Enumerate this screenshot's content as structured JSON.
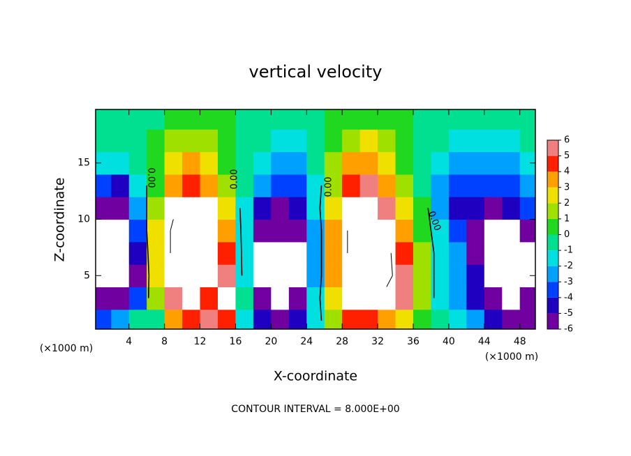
{
  "chart_data": {
    "type": "contourf",
    "title": "vertical velocity",
    "xlabel": "X-coordinate",
    "ylabel": "Z-coordinate",
    "x_unit_label": "(×1000 m)",
    "y_unit_label": "(×1000 m)",
    "contour_interval_label": "CONTOUR INTERVAL = 8.000E+00",
    "contour_labels": [
      "0.00",
      "0.00",
      "0.00",
      "0.00"
    ],
    "xlim": [
      0.25,
      49.75
    ],
    "ylim": [
      0.25,
      19.75
    ],
    "xticks": [
      4,
      8,
      12,
      16,
      20,
      24,
      28,
      32,
      36,
      40,
      44,
      48
    ],
    "yticks": [
      5,
      10,
      15
    ],
    "x": [
      1,
      3,
      5,
      7,
      9,
      11,
      13,
      15,
      17,
      19,
      21,
      23,
      25,
      27,
      29,
      31,
      33,
      35,
      37,
      39,
      41,
      43,
      45,
      47,
      49
    ],
    "y": [
      1,
      3,
      5,
      7,
      9,
      11,
      13,
      15,
      17,
      19
    ],
    "z": [
      [
        -3,
        -2,
        0,
        0,
        4,
        5,
        6,
        5,
        -1,
        -4,
        -5,
        -4,
        -1,
        2,
        5,
        5,
        4,
        3,
        1,
        0,
        -1,
        -2,
        -4,
        -5,
        -5
      ],
      [
        -5,
        -6,
        -3,
        2,
        6,
        7,
        5,
        7,
        0,
        -6,
        -7,
        -5,
        -1,
        3,
        7,
        8,
        7,
        6,
        2,
        -1,
        -2,
        -4,
        -6,
        -7,
        -6
      ],
      [
        -7,
        -7,
        -5,
        3,
        8,
        9,
        8,
        6,
        -1,
        -7,
        -8,
        -7,
        -2,
        4,
        8,
        10,
        9,
        6,
        2,
        -1,
        -2,
        -4,
        -7,
        -8,
        -7
      ],
      [
        -8,
        -7,
        -4,
        3,
        9,
        10,
        9,
        5,
        -1,
        -7,
        -8,
        -7,
        -2,
        4,
        9,
        11,
        9,
        5,
        2,
        -1,
        -2,
        -5,
        -7,
        -8,
        -7
      ],
      [
        -7,
        -7,
        -3,
        3,
        9,
        10,
        8,
        4,
        -1,
        -5,
        -6,
        -5,
        -2,
        4,
        9,
        11,
        8,
        4,
        1,
        -1,
        -3,
        -5,
        -7,
        -7,
        -5
      ],
      [
        -5,
        -5,
        -2,
        2,
        7,
        8,
        7,
        3,
        -1,
        -4,
        -5,
        -4,
        -1,
        3,
        8,
        8,
        6,
        3,
        1,
        -2,
        -4,
        -4,
        -5,
        -4,
        -3
      ],
      [
        -3,
        -4,
        -1,
        1,
        4,
        5,
        4,
        2,
        0,
        -2,
        -3,
        -3,
        -1,
        2,
        5,
        6,
        4,
        2,
        0,
        -2,
        -3,
        -3,
        -3,
        -3,
        -2
      ],
      [
        -1,
        -1,
        0,
        1,
        3,
        4,
        3,
        1,
        0,
        -1,
        -2,
        -2,
        0,
        2,
        4,
        4,
        3,
        1,
        0,
        -1,
        -2,
        -2,
        -2,
        -2,
        -1
      ],
      [
        0,
        0,
        0,
        1,
        2,
        2,
        2,
        1,
        0,
        0,
        -1,
        -1,
        0,
        1,
        2,
        3,
        2,
        1,
        0,
        0,
        -1,
        -1,
        -1,
        -1,
        0
      ],
      [
        0,
        0,
        0,
        0,
        1,
        1,
        1,
        1,
        0,
        0,
        0,
        0,
        0,
        1,
        1,
        1,
        1,
        1,
        0,
        0,
        0,
        0,
        0,
        0,
        0
      ]
    ],
    "contour_levels": [
      -8,
      0,
      8
    ],
    "colorbar": {
      "ticks": [
        -6,
        -5,
        -4,
        -3,
        -2,
        -1,
        0,
        1,
        2,
        3,
        4,
        5,
        6
      ],
      "colors": [
        "#7000a0",
        "#2000c0",
        "#0040ff",
        "#00a0ff",
        "#00e0e0",
        "#00e090",
        "#20d820",
        "#a0e000",
        "#f0e000",
        "#ffa000",
        "#ff2000",
        "#f08080"
      ],
      "over_color": "#ffffff"
    }
  }
}
